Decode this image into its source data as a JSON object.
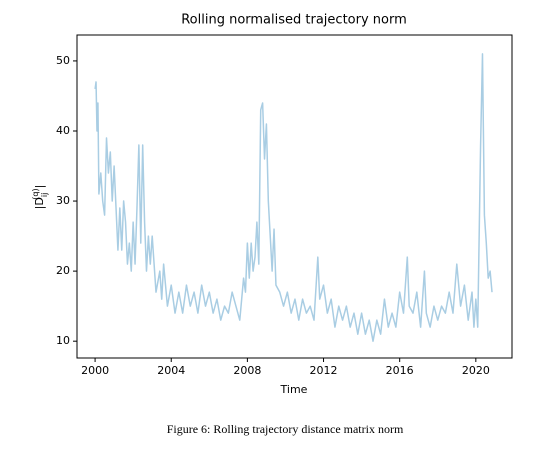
{
  "chart_data": {
    "type": "line",
    "title": "Rolling normalised trajectory norm",
    "x_label": "Time",
    "y_label_parts": [
      "|D",
      "ij",
      "(q)",
      "|"
    ],
    "caption": "Figure 6: Rolling trajectory distance matrix norm",
    "color": "#a9cde3",
    "xlim": [
      1999.05,
      2021.9
    ],
    "ylim": [
      7.6,
      53.7
    ],
    "xticks": [
      2000,
      2004,
      2008,
      2012,
      2016,
      2020
    ],
    "yticks": [
      10,
      20,
      30,
      40,
      50
    ],
    "x": [
      2000.0,
      2000.05,
      2000.1,
      2000.15,
      2000.2,
      2000.3,
      2000.4,
      2000.5,
      2000.6,
      2000.7,
      2000.8,
      2000.9,
      2001.0,
      2001.1,
      2001.2,
      2001.3,
      2001.4,
      2001.5,
      2001.6,
      2001.7,
      2001.8,
      2001.9,
      2002.0,
      2002.1,
      2002.2,
      2002.3,
      2002.4,
      2002.5,
      2002.6,
      2002.7,
      2002.8,
      2002.9,
      2003.0,
      2003.2,
      2003.4,
      2003.5,
      2003.6,
      2003.8,
      2004.0,
      2004.2,
      2004.4,
      2004.6,
      2004.8,
      2005.0,
      2005.2,
      2005.4,
      2005.6,
      2005.8,
      2006.0,
      2006.2,
      2006.4,
      2006.6,
      2006.8,
      2007.0,
      2007.2,
      2007.4,
      2007.6,
      2007.8,
      2007.9,
      2008.0,
      2008.1,
      2008.2,
      2008.3,
      2008.4,
      2008.5,
      2008.6,
      2008.7,
      2008.8,
      2008.9,
      2009.0,
      2009.1,
      2009.2,
      2009.3,
      2009.4,
      2009.5,
      2009.7,
      2009.9,
      2010.1,
      2010.3,
      2010.5,
      2010.7,
      2010.9,
      2011.1,
      2011.3,
      2011.5,
      2011.7,
      2011.8,
      2012.0,
      2012.2,
      2012.4,
      2012.6,
      2012.8,
      2013.0,
      2013.2,
      2013.4,
      2013.6,
      2013.8,
      2014.0,
      2014.2,
      2014.4,
      2014.6,
      2014.8,
      2015.0,
      2015.2,
      2015.4,
      2015.6,
      2015.8,
      2016.0,
      2016.2,
      2016.4,
      2016.5,
      2016.7,
      2016.9,
      2017.1,
      2017.3,
      2017.4,
      2017.6,
      2017.8,
      2018.0,
      2018.2,
      2018.4,
      2018.6,
      2018.8,
      2019.0,
      2019.2,
      2019.4,
      2019.6,
      2019.8,
      2019.9,
      2020.0,
      2020.1,
      2020.25,
      2020.35,
      2020.45,
      2020.55,
      2020.65,
      2020.75,
      2020.85
    ],
    "values": [
      46,
      47,
      40,
      44,
      31,
      34,
      30,
      28,
      39,
      34,
      37,
      30,
      35,
      29,
      23,
      29,
      23,
      30,
      27,
      21,
      24,
      20,
      27,
      21,
      29,
      38,
      24,
      38,
      27,
      20,
      25,
      21,
      25,
      17,
      20,
      16,
      21,
      15,
      18,
      14,
      17,
      14,
      18,
      15,
      17,
      14,
      18,
      15,
      17,
      14,
      16,
      13,
      15,
      14,
      17,
      15,
      13,
      19,
      17,
      24,
      19,
      24,
      20,
      22,
      27,
      21,
      43,
      44,
      36,
      41,
      30,
      25,
      20,
      26,
      18,
      17,
      15,
      17,
      14,
      16,
      13,
      16,
      14,
      15,
      13,
      22,
      16,
      18,
      14,
      16,
      12,
      15,
      13,
      15,
      12,
      14,
      11,
      14,
      11,
      13,
      10,
      13,
      11,
      16,
      12,
      14,
      12,
      17,
      14,
      22,
      15,
      14,
      17,
      12,
      20,
      14,
      12,
      15,
      13,
      15,
      14,
      17,
      14,
      21,
      15,
      18,
      13,
      17,
      12,
      16,
      12,
      38,
      51,
      28,
      24,
      19,
      20,
      17
    ]
  }
}
